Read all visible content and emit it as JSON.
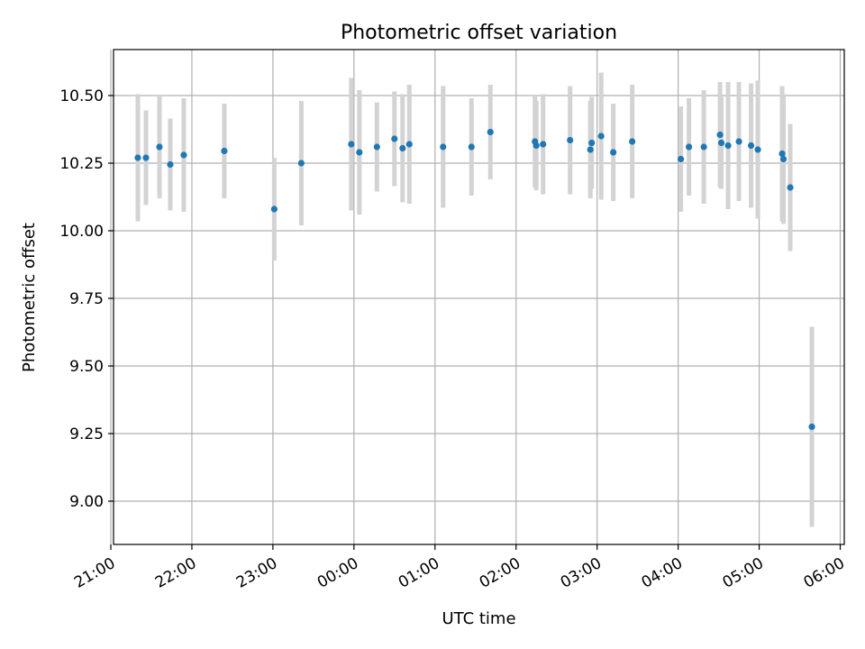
{
  "chart_data": {
    "type": "scatter",
    "title": "Photometric offset variation",
    "xlabel": "UTC time",
    "ylabel": "Photometric offset",
    "x_tick_labels": [
      "21:00",
      "22:00",
      "23:00",
      "00:00",
      "01:00",
      "02:00",
      "03:00",
      "04:00",
      "05:00",
      "06:00"
    ],
    "y_ticks": [
      9.0,
      9.25,
      9.5,
      9.75,
      10.0,
      10.25,
      10.5
    ],
    "y_tick_labels": [
      "9.00",
      "9.25",
      "9.50",
      "9.75",
      "10.00",
      "10.25",
      "10.50"
    ],
    "xlim": [
      "21:02",
      "30:03"
    ],
    "ylim": [
      8.84,
      10.67
    ],
    "grid": true,
    "colors": {
      "marker": "#1f77b4",
      "errorbar": "#d3d3d3",
      "grid": "#b0b0b0"
    },
    "points": [
      {
        "t": "21:20",
        "y": 10.27,
        "err": 0.235
      },
      {
        "t": "21:26",
        "y": 10.27,
        "err": 0.175
      },
      {
        "t": "21:36",
        "y": 10.31,
        "err": 0.19
      },
      {
        "t": "21:44",
        "y": 10.245,
        "err": 0.17
      },
      {
        "t": "21:54",
        "y": 10.28,
        "err": 0.21
      },
      {
        "t": "22:24",
        "y": 10.295,
        "err": 0.175
      },
      {
        "t": "23:01",
        "y": 10.08,
        "err": 0.19
      },
      {
        "t": "23:21",
        "y": 10.25,
        "err": 0.23
      },
      {
        "t": "23:58",
        "y": 10.32,
        "err": 0.245
      },
      {
        "t": "00:04",
        "y": 10.29,
        "err": 0.23
      },
      {
        "t": "00:17",
        "y": 10.31,
        "err": 0.165
      },
      {
        "t": "00:30",
        "y": 10.34,
        "err": 0.175
      },
      {
        "t": "00:36",
        "y": 10.305,
        "err": 0.2
      },
      {
        "t": "00:41",
        "y": 10.32,
        "err": 0.22
      },
      {
        "t": "01:06",
        "y": 10.31,
        "err": 0.225
      },
      {
        "t": "01:27",
        "y": 10.31,
        "err": 0.18
      },
      {
        "t": "01:41",
        "y": 10.365,
        "err": 0.175
      },
      {
        "t": "02:14",
        "y": 10.33,
        "err": 0.17
      },
      {
        "t": "02:15",
        "y": 10.315,
        "err": 0.165
      },
      {
        "t": "02:20",
        "y": 10.32,
        "err": 0.185
      },
      {
        "t": "02:40",
        "y": 10.335,
        "err": 0.2
      },
      {
        "t": "02:55",
        "y": 10.3,
        "err": 0.18
      },
      {
        "t": "02:56",
        "y": 10.325,
        "err": 0.17
      },
      {
        "t": "03:03",
        "y": 10.35,
        "err": 0.235
      },
      {
        "t": "03:12",
        "y": 10.29,
        "err": 0.18
      },
      {
        "t": "03:26",
        "y": 10.33,
        "err": 0.21
      },
      {
        "t": "04:02",
        "y": 10.265,
        "err": 0.195
      },
      {
        "t": "04:08",
        "y": 10.31,
        "err": 0.18
      },
      {
        "t": "04:19",
        "y": 10.31,
        "err": 0.21
      },
      {
        "t": "04:31",
        "y": 10.355,
        "err": 0.195
      },
      {
        "t": "04:32",
        "y": 10.325,
        "err": 0.17
      },
      {
        "t": "04:37",
        "y": 10.315,
        "err": 0.235
      },
      {
        "t": "04:45",
        "y": 10.33,
        "err": 0.22
      },
      {
        "t": "04:54",
        "y": 10.315,
        "err": 0.23
      },
      {
        "t": "04:59",
        "y": 10.3,
        "err": 0.255
      },
      {
        "t": "05:17",
        "y": 10.285,
        "err": 0.25
      },
      {
        "t": "05:18",
        "y": 10.265,
        "err": 0.24
      },
      {
        "t": "05:23",
        "y": 10.16,
        "err": 0.235
      },
      {
        "t": "05:39",
        "y": 9.275,
        "err": 0.37
      }
    ]
  }
}
